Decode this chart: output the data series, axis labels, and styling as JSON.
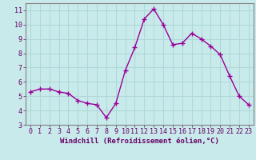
{
  "x": [
    0,
    1,
    2,
    3,
    4,
    5,
    6,
    7,
    8,
    9,
    10,
    11,
    12,
    13,
    14,
    15,
    16,
    17,
    18,
    19,
    20,
    21,
    22,
    23
  ],
  "y": [
    5.3,
    5.5,
    5.5,
    5.3,
    5.2,
    4.7,
    4.5,
    4.4,
    3.5,
    4.5,
    6.8,
    8.4,
    10.4,
    11.1,
    10.0,
    8.6,
    8.7,
    9.4,
    9.0,
    8.5,
    7.9,
    6.4,
    5.0,
    4.4
  ],
  "line_color": "#990099",
  "marker": "+",
  "marker_size": 4,
  "linewidth": 1.0,
  "xlabel": "Windchill (Refroidissement éolien,°C)",
  "ylim": [
    3,
    11.5
  ],
  "xlim": [
    -0.5,
    23.5
  ],
  "yticks": [
    3,
    4,
    5,
    6,
    7,
    8,
    9,
    10,
    11
  ],
  "xticks": [
    0,
    1,
    2,
    3,
    4,
    5,
    6,
    7,
    8,
    9,
    10,
    11,
    12,
    13,
    14,
    15,
    16,
    17,
    18,
    19,
    20,
    21,
    22,
    23
  ],
  "bg_color": "#c8eaea",
  "grid_color": "#b0d8d8",
  "axis_color": "#808080",
  "tick_color": "#660066",
  "label_color": "#660066",
  "xlabel_fontsize": 6.5,
  "tick_fontsize": 6.0
}
